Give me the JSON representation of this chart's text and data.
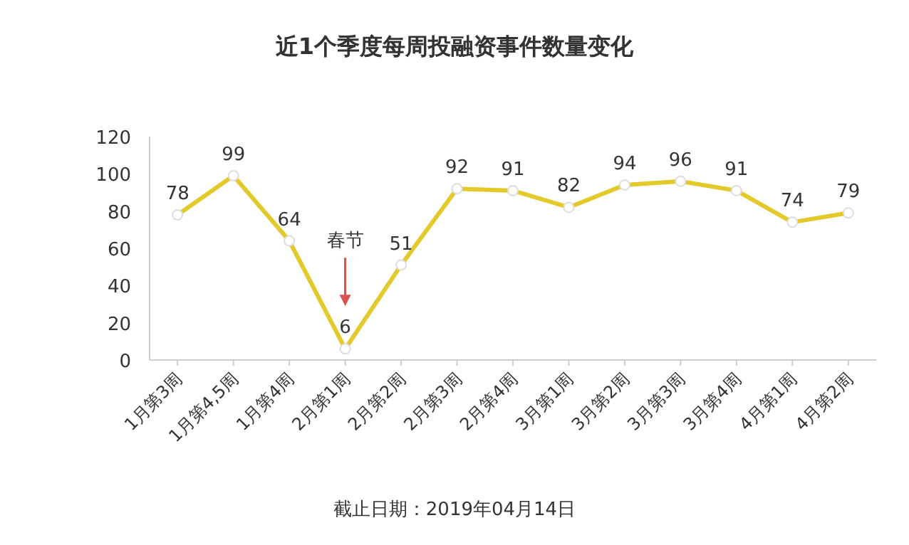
{
  "chart_data": {
    "type": "line",
    "title": "近1个季度每周投融资事件数量变化",
    "categories": [
      "1月第3周",
      "1月第4,5周",
      "1月第4周",
      "2月第1周",
      "2月第2周",
      "2月第3周",
      "2月第4周",
      "3月第1周",
      "3月第2周",
      "3月第3周",
      "3月第4周",
      "4月第1周",
      "4月第2周"
    ],
    "series": [
      {
        "color": "#e3c92a",
        "values": [
          78,
          99,
          64,
          6,
          51,
          92,
          91,
          82,
          94,
          96,
          91,
          74,
          79
        ]
      }
    ],
    "ylim": [
      0,
      120
    ],
    "yticks": [
      0,
      20,
      40,
      60,
      80,
      100,
      120
    ],
    "data_labels": true,
    "marker": "circle",
    "line_style": "solid",
    "annotations": [
      "春节",
      "截止日期：2019年04月14日"
    ]
  }
}
